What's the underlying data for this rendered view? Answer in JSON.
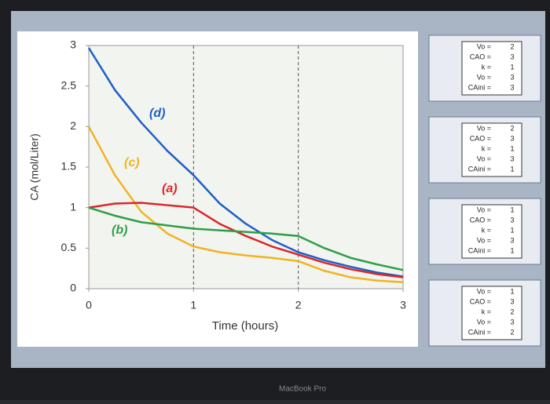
{
  "chart_data": {
    "type": "line",
    "x_label": "Time (hours)",
    "y_label": "CA (mol/Liter)",
    "x": [
      0,
      0.25,
      0.5,
      0.75,
      1,
      1.25,
      1.5,
      1.75,
      2,
      2.25,
      2.5,
      2.75,
      3
    ],
    "xlim": [
      0,
      3
    ],
    "ylim": [
      0,
      3
    ],
    "xticks": [
      0,
      1,
      2,
      3
    ],
    "yticks": [
      0,
      0.5,
      1,
      1.5,
      2,
      2.5,
      3
    ],
    "vlines": [
      1,
      2
    ],
    "series": [
      {
        "label": "(d)",
        "color": "#1f5fc4",
        "values": [
          2.97,
          2.45,
          2.05,
          1.7,
          1.4,
          1.05,
          0.8,
          0.6,
          0.45,
          0.35,
          0.27,
          0.2,
          0.15
        ]
      },
      {
        "label": "(c)",
        "color": "#f0b323",
        "values": [
          2.0,
          1.4,
          0.95,
          0.68,
          0.52,
          0.45,
          0.41,
          0.38,
          0.34,
          0.22,
          0.14,
          0.1,
          0.08
        ]
      },
      {
        "label": "(a)",
        "color": "#d9262b",
        "values": [
          1.0,
          1.05,
          1.06,
          1.03,
          1.0,
          0.8,
          0.65,
          0.52,
          0.42,
          0.32,
          0.24,
          0.18,
          0.14
        ]
      },
      {
        "label": "(b)",
        "color": "#2e9e48",
        "values": [
          1.0,
          0.9,
          0.82,
          0.78,
          0.74,
          0.72,
          0.7,
          0.68,
          0.65,
          0.5,
          0.38,
          0.3,
          0.23
        ]
      }
    ]
  },
  "param_tables": [
    {
      "labels": [
        "Vo =",
        "CAO =",
        "k =",
        "Vo =",
        "CAini ="
      ],
      "values": [
        2,
        3,
        1,
        3,
        3
      ]
    },
    {
      "labels": [
        "Vo =",
        "CAO =",
        "k =",
        "Vo =",
        "CAini ="
      ],
      "values": [
        2,
        3,
        1,
        3,
        1
      ]
    },
    {
      "labels": [
        "Vo =",
        "CAO =",
        "k =",
        "Vo =",
        "CAini ="
      ],
      "values": [
        1,
        3,
        1,
        3,
        1
      ]
    },
    {
      "labels": [
        "Vo =",
        "CAO =",
        "k =",
        "Vo =",
        "CAini ="
      ],
      "values": [
        1,
        3,
        2,
        3,
        2
      ]
    }
  ],
  "device_label": "MacBook Pro"
}
